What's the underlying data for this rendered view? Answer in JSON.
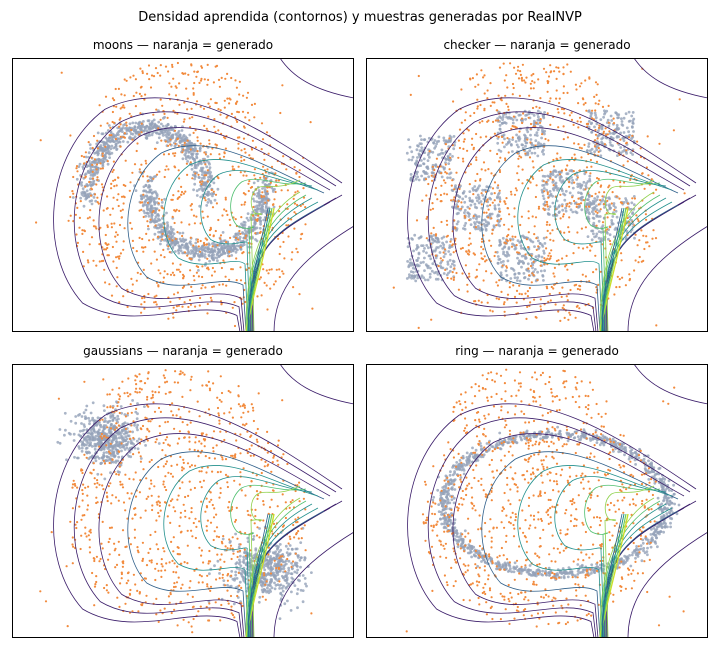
{
  "figure": {
    "suptitle": "Densidad aprendida (contornos) y muestras generadas por RealNVP"
  },
  "colors": {
    "generated": "#f28a3c",
    "data": "#95a3b9",
    "contour_low": "#3b1d6a",
    "contour_mid": "#22908d",
    "contour_high": "#c9df2b",
    "axes": "#000000"
  },
  "chart_data": [
    {
      "type": "scatter",
      "title": "moons — naranja = generado",
      "dataset": "moons",
      "xticks": [],
      "yticks": [],
      "grid": false,
      "overlay": "density-contours",
      "series": [
        {
          "name": "data",
          "color": "#95a3b9"
        },
        {
          "name": "generado",
          "color": "#f28a3c"
        }
      ]
    },
    {
      "type": "scatter",
      "title": "checker — naranja = generado",
      "dataset": "checker",
      "xticks": [],
      "yticks": [],
      "grid": false,
      "overlay": "density-contours",
      "series": [
        {
          "name": "data",
          "color": "#95a3b9"
        },
        {
          "name": "generado",
          "color": "#f28a3c"
        }
      ]
    },
    {
      "type": "scatter",
      "title": "gaussians — naranja = generado",
      "dataset": "gaussians",
      "xticks": [],
      "yticks": [],
      "grid": false,
      "overlay": "density-contours",
      "series": [
        {
          "name": "data",
          "color": "#95a3b9"
        },
        {
          "name": "generado",
          "color": "#f28a3c"
        }
      ]
    },
    {
      "type": "scatter",
      "title": "ring — naranja = generado",
      "dataset": "ring",
      "xticks": [],
      "yticks": [],
      "grid": false,
      "overlay": "density-contours",
      "series": [
        {
          "name": "data",
          "color": "#95a3b9"
        },
        {
          "name": "generado",
          "color": "#f28a3c"
        }
      ]
    }
  ]
}
